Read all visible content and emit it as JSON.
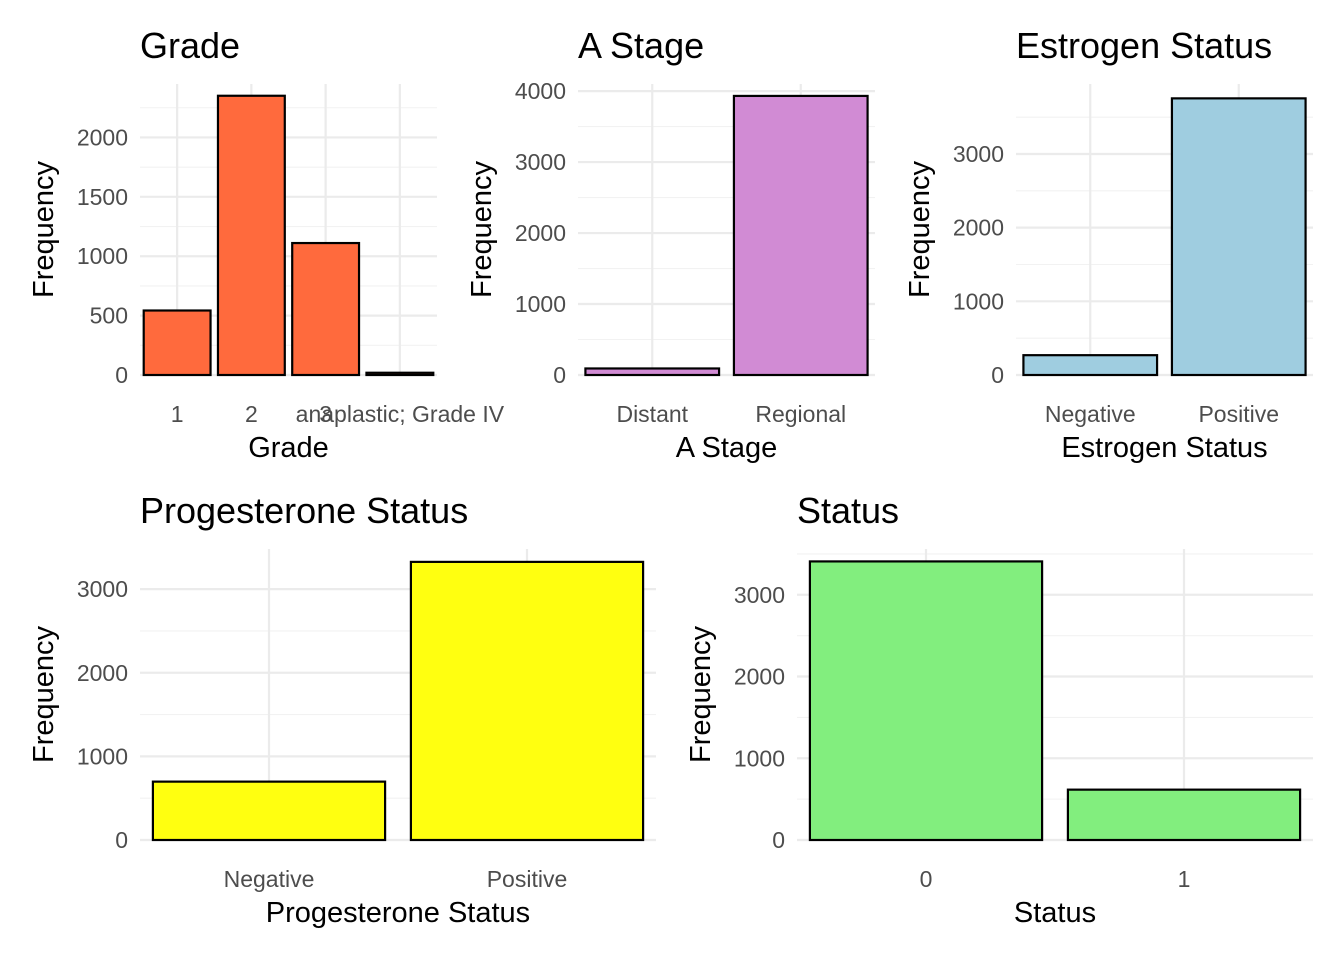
{
  "chart_data": [
    {
      "type": "bar",
      "title": "Grade",
      "xlabel": "Grade",
      "ylabel": "Frequency",
      "categories": [
        "1",
        "2",
        "3",
        "anaplastic; Grade IV"
      ],
      "values": [
        543,
        2351,
        1111,
        19
      ],
      "ylim": [
        0,
        2450
      ],
      "yticks": [
        0,
        500,
        1000,
        1500,
        2000
      ],
      "color": "#ff6a3d",
      "grid": true
    },
    {
      "type": "bar",
      "title": "A Stage",
      "xlabel": "A Stage",
      "ylabel": "Frequency",
      "categories": [
        "Distant",
        "Regional"
      ],
      "values": [
        92,
        3932
      ],
      "ylim": [
        0,
        4100
      ],
      "yticks": [
        0,
        1000,
        2000,
        3000,
        4000
      ],
      "color": "#d18bd4",
      "grid": true
    },
    {
      "type": "bar",
      "title": "Estrogen Status",
      "xlabel": "Estrogen Status",
      "ylabel": "Frequency",
      "categories": [
        "Negative",
        "Positive"
      ],
      "values": [
        269,
        3755
      ],
      "ylim": [
        0,
        3950
      ],
      "yticks": [
        0,
        1000,
        2000,
        3000
      ],
      "color": "#9fcde0",
      "grid": true
    },
    {
      "type": "bar",
      "title": "Progesterone Status",
      "xlabel": "Progesterone Status",
      "ylabel": "Frequency",
      "categories": [
        "Negative",
        "Positive"
      ],
      "values": [
        698,
        3326
      ],
      "ylim": [
        0,
        3480
      ],
      "yticks": [
        0,
        1000,
        2000,
        3000
      ],
      "color": "#ffff10",
      "grid": true
    },
    {
      "type": "bar",
      "title": "Status",
      "xlabel": "Status",
      "ylabel": "Frequency",
      "categories": [
        "0",
        "1"
      ],
      "values": [
        3408,
        616
      ],
      "ylim": [
        0,
        3560
      ],
      "yticks": [
        0,
        1000,
        2000,
        3000
      ],
      "color": "#82ee7e",
      "grid": true
    }
  ]
}
